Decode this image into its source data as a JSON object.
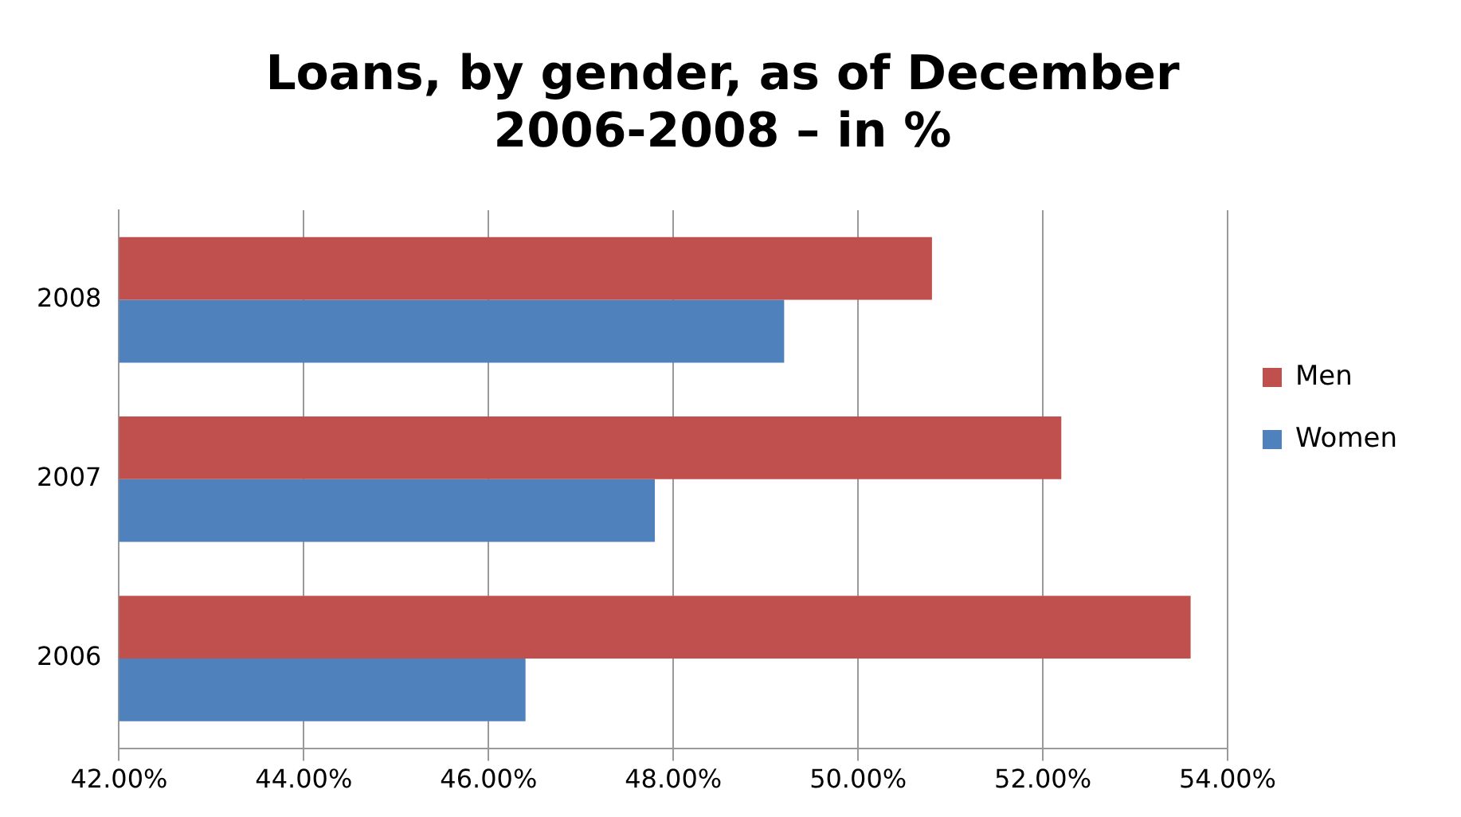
{
  "chart_data": {
    "type": "bar",
    "orientation": "horizontal",
    "title": "Loans, by gender, as of December\n2006-2008 – in %",
    "categories": [
      "2008",
      "2007",
      "2006"
    ],
    "series": [
      {
        "name": "Men",
        "color": "#c0504d",
        "values": [
          50.8,
          52.2,
          53.6
        ]
      },
      {
        "name": "Women",
        "color": "#4f81bd",
        "values": [
          49.2,
          47.8,
          46.4
        ]
      }
    ],
    "xlim": [
      42,
      54
    ],
    "xticks": [
      {
        "value": 42,
        "label": "42.00%"
      },
      {
        "value": 44,
        "label": "44.00%"
      },
      {
        "value": 46,
        "label": "46.00%"
      },
      {
        "value": 48,
        "label": "48.00%"
      },
      {
        "value": 50,
        "label": "50.00%"
      },
      {
        "value": 52,
        "label": "52.00%"
      },
      {
        "value": 54,
        "label": "54.00%"
      }
    ],
    "grid": "x",
    "legend": "right"
  }
}
